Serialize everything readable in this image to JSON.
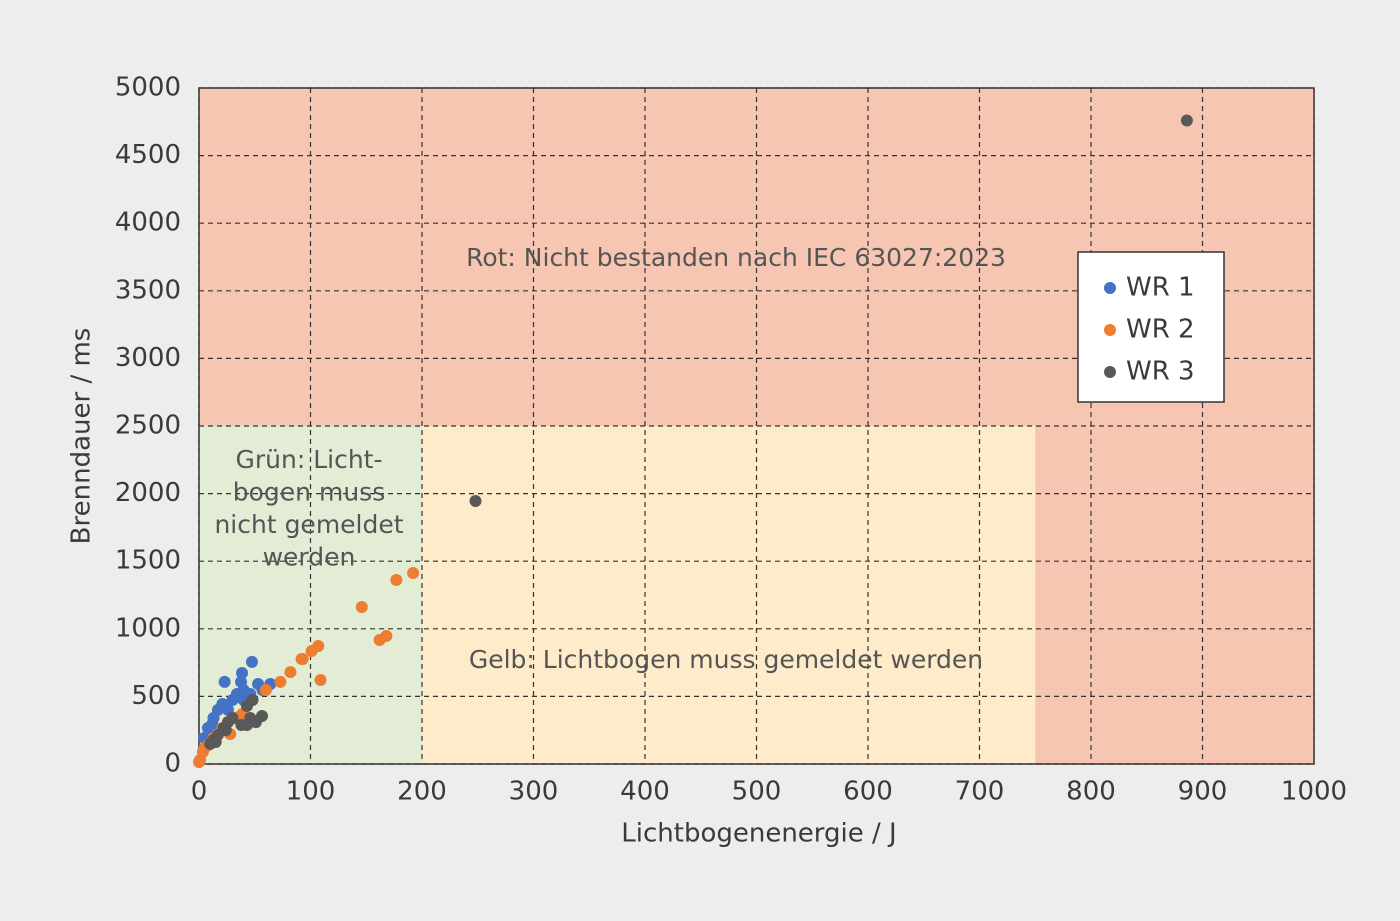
{
  "chart_data": {
    "type": "scatter",
    "xlabel": "Lichtbogenenergie / J",
    "ylabel": "Brenndauer / ms",
    "xlim": [
      0,
      1000
    ],
    "ylim": [
      0,
      5000
    ],
    "xticks": [
      0,
      100,
      200,
      300,
      400,
      500,
      600,
      700,
      800,
      900,
      1000
    ],
    "yticks": [
      0,
      500,
      1000,
      1500,
      2000,
      2500,
      3000,
      3500,
      4000,
      4500,
      5000
    ],
    "grid": true,
    "legend": "upper right",
    "regions": [
      {
        "label": [
          "Rot: Nicht bestanden nach IEC 63027:2023"
        ],
        "color": "#f7c6b2",
        "xlim": [
          0,
          1000
        ],
        "ylim": [
          0,
          5000
        ]
      },
      {
        "label": [
          "Grün: Licht-",
          "bogen muss",
          "nicht gemeldet",
          "werden"
        ],
        "color": "#e3ecd5",
        "xlim": [
          0,
          200
        ],
        "ylim": [
          0,
          2500
        ]
      },
      {
        "label": [
          "Gelb: Lichtbogen muss gemeldet werden"
        ],
        "color": "#fdebc9",
        "xlim": [
          200,
          750
        ],
        "ylim": [
          0,
          2500
        ]
      }
    ],
    "series": [
      {
        "name": "WR 1",
        "color": "#4472c4",
        "x": [
          47.5,
          38.6,
          23,
          37.7,
          40,
          53,
          64,
          34,
          46,
          57,
          21,
          17,
          13,
          8,
          4.5,
          12,
          26,
          40,
          30
        ],
        "y": [
          755,
          673,
          607,
          607,
          547,
          592,
          592,
          518,
          518,
          547,
          444,
          400,
          340,
          266,
          192,
          296,
          400,
          473,
          473
        ]
      },
      {
        "name": "WR 2",
        "color": "#ed7d31",
        "x": [
          192,
          177,
          146,
          168,
          162,
          107,
          101,
          92,
          93,
          109,
          82,
          73,
          60,
          37,
          33,
          28,
          21,
          13,
          8,
          3.5,
          1,
          0,
          5,
          26,
          39
        ],
        "y": [
          1413,
          1361,
          1161,
          947,
          917,
          873,
          836,
          777,
          777,
          621,
          680,
          607,
          547,
          355,
          340,
          222,
          266,
          192,
          140,
          89,
          30,
          15,
          118,
          310,
          370
        ]
      },
      {
        "name": "WR 3",
        "color": "#595959",
        "x": [
          886,
          248,
          56.5,
          46,
          43,
          48,
          38,
          43,
          51,
          13,
          17,
          22,
          26,
          30,
          24,
          15,
          10
        ],
        "y": [
          4760,
          1945,
          355,
          340,
          429,
          473,
          288,
          288,
          310,
          178,
          215,
          266,
          310,
          340,
          250,
          163,
          148
        ]
      }
    ]
  }
}
